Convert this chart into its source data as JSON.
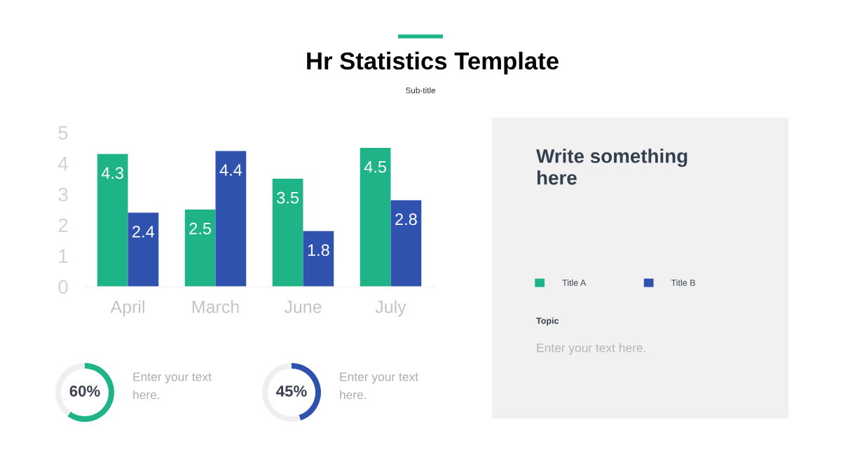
{
  "chart_data": [
    {
      "type": "bar",
      "title": "Hr Statistics Template",
      "subtitle": "Sub-title",
      "categories": [
        "April",
        "March",
        "June",
        "July"
      ],
      "series": [
        {
          "name": "Title A",
          "color": "#1fb388",
          "values": [
            4.3,
            2.5,
            3.5,
            4.5
          ]
        },
        {
          "name": "Title B",
          "color": "#2e52ae",
          "values": [
            2.4,
            4.4,
            1.8,
            2.8
          ]
        }
      ],
      "ylim": [
        0,
        5
      ],
      "yticks": [
        0,
        1,
        2,
        3,
        4,
        5
      ],
      "data_labels": true,
      "legend": "right"
    },
    {
      "type": "donut",
      "categories": [
        null,
        null
      ],
      "values": [
        60,
        40
      ],
      "colors": [
        "#1fb388",
        "#efefef"
      ],
      "value_labels": [
        "60%",
        null
      ],
      "annotations": [
        "Enter your text here."
      ]
    },
    {
      "type": "donut",
      "categories": [
        null,
        null
      ],
      "values": [
        45,
        55
      ],
      "colors": [
        "#2e52ae",
        "#efefef"
      ],
      "value_labels": [
        "45%",
        null
      ],
      "annotations": [
        "Enter your text here."
      ]
    },
    {
      "type": "other",
      "title": "Write something here",
      "subtitle": "Topic",
      "annotations": [
        "Enter your text here."
      ]
    }
  ]
}
